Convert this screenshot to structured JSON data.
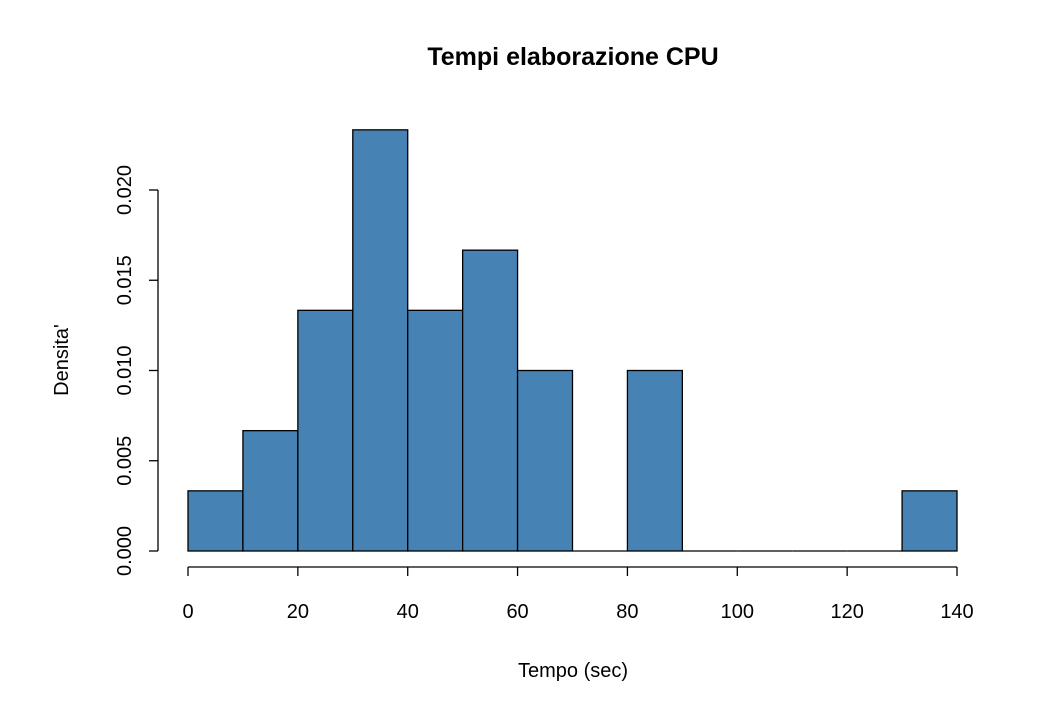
{
  "chart_data": {
    "type": "bar",
    "title": "Tempi elaborazione CPU",
    "xlabel": "Tempo (sec)",
    "ylabel": "Densita'",
    "bins": [
      {
        "start": 0,
        "end": 10,
        "density": 0.003333
      },
      {
        "start": 10,
        "end": 20,
        "density": 0.006667
      },
      {
        "start": 20,
        "end": 30,
        "density": 0.013333
      },
      {
        "start": 30,
        "end": 40,
        "density": 0.023333
      },
      {
        "start": 40,
        "end": 50,
        "density": 0.013333
      },
      {
        "start": 50,
        "end": 60,
        "density": 0.016667
      },
      {
        "start": 60,
        "end": 70,
        "density": 0.01
      },
      {
        "start": 70,
        "end": 80,
        "density": 0
      },
      {
        "start": 80,
        "end": 90,
        "density": 0.01
      },
      {
        "start": 90,
        "end": 100,
        "density": 0
      },
      {
        "start": 100,
        "end": 110,
        "density": 0
      },
      {
        "start": 110,
        "end": 120,
        "density": 0
      },
      {
        "start": 120,
        "end": 130,
        "density": 0
      },
      {
        "start": 130,
        "end": 140,
        "density": 0.003333
      }
    ],
    "xlim": [
      0,
      140
    ],
    "ylim": [
      0,
      0.022
    ],
    "x_ticks": [
      "0",
      "20",
      "40",
      "60",
      "80",
      "100",
      "120",
      "140"
    ],
    "y_ticks": [
      "0.000",
      "0.005",
      "0.010",
      "0.015",
      "0.020"
    ],
    "bar_color": "#4682B4",
    "grid": false
  }
}
